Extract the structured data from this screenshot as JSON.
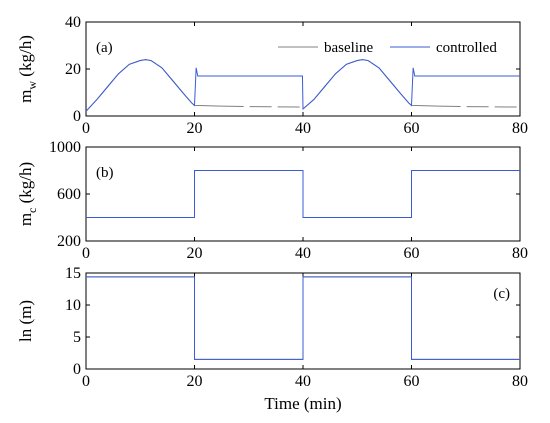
{
  "chart_data": [
    {
      "type": "line",
      "panel_label": "(a)",
      "ylabel": {
        "main": "m",
        "sub": "w",
        "unit": " (kg/h)"
      },
      "xlim": [
        0,
        80
      ],
      "ylim": [
        0,
        40
      ],
      "xticks": [
        "0",
        "20",
        "40",
        "60",
        "80"
      ],
      "yticks": [
        "0",
        "20",
        "40"
      ],
      "xtick_values": [
        0,
        20,
        40,
        60,
        80
      ],
      "ytick_values": [
        0,
        20,
        40
      ],
      "legend": {
        "position": "top-right",
        "entries": [
          "baseline",
          "controlled"
        ]
      },
      "series": [
        {
          "name": "baseline",
          "color": "#808080",
          "dashed_after_min": 25,
          "x": [
            0,
            2,
            4,
            6,
            8,
            10,
            11,
            12,
            14,
            16,
            18,
            19.5,
            20,
            25,
            30,
            35,
            39.9,
            40,
            42,
            44,
            46,
            48,
            50,
            51,
            52,
            54,
            56,
            58,
            59.5,
            60,
            65,
            70,
            75,
            80
          ],
          "values": [
            2,
            7,
            12.5,
            18,
            22,
            23.6,
            24,
            23.6,
            20.5,
            15,
            9.5,
            5.5,
            4.5,
            4.2,
            4,
            3.9,
            3.8,
            3,
            7,
            12.5,
            18,
            22,
            23.6,
            24,
            23.6,
            20.5,
            15,
            9.5,
            5.5,
            4.5,
            4.2,
            4,
            3.9,
            3.8
          ]
        },
        {
          "name": "controlled",
          "color": "#3a5cd6",
          "x": [
            0,
            2,
            4,
            6,
            8,
            10,
            11,
            12,
            14,
            16,
            18,
            19.5,
            20,
            20.3,
            20.6,
            25,
            30,
            35,
            39.9,
            40,
            42,
            44,
            46,
            48,
            50,
            51,
            52,
            54,
            56,
            58,
            59.5,
            60,
            60.3,
            60.6,
            65,
            70,
            75,
            80
          ],
          "values": [
            2,
            7,
            12.5,
            18,
            22,
            23.6,
            24,
            23.6,
            20.5,
            15,
            9.5,
            5.5,
            4.5,
            20.5,
            17,
            17,
            17,
            17,
            17,
            3,
            7,
            12.5,
            18,
            22,
            23.6,
            24,
            23.6,
            20.5,
            15,
            9.5,
            5.5,
            4.5,
            20.5,
            17,
            17,
            17,
            17,
            17
          ]
        }
      ]
    },
    {
      "type": "line",
      "panel_label": "(b)",
      "ylabel": {
        "main": "m",
        "sub": "c",
        "unit": " (kg/h)"
      },
      "xlim": [
        0,
        80
      ],
      "ylim": [
        200,
        1000
      ],
      "xticks": [
        "0",
        "20",
        "40",
        "60",
        "80"
      ],
      "yticks": [
        "200",
        "600",
        "1000"
      ],
      "xtick_values": [
        0,
        20,
        40,
        60,
        80
      ],
      "ytick_values": [
        200,
        600,
        1000
      ],
      "series": [
        {
          "name": "baseline",
          "color": "#808080",
          "x": [
            0,
            20,
            20,
            40,
            40,
            60,
            60,
            80
          ],
          "values": [
            400,
            400,
            800,
            800,
            400,
            400,
            800,
            800
          ]
        },
        {
          "name": "controlled",
          "color": "#3a5cd6",
          "x": [
            0,
            20,
            20,
            40,
            40,
            60,
            60,
            80
          ],
          "values": [
            400,
            400,
            800,
            800,
            400,
            400,
            800,
            800
          ]
        }
      ]
    },
    {
      "type": "line",
      "panel_label": "(c)",
      "ylabel": {
        "main": "ln",
        "sub": "",
        "unit": " (m)"
      },
      "xlabel": "Time (min)",
      "xlim": [
        0,
        80
      ],
      "ylim": [
        0,
        15
      ],
      "xticks": [
        "0",
        "20",
        "40",
        "60",
        "80"
      ],
      "yticks": [
        "0",
        "5",
        "10",
        "15"
      ],
      "xtick_values": [
        0,
        20,
        40,
        60,
        80
      ],
      "ytick_values": [
        0,
        5,
        10,
        15
      ],
      "series": [
        {
          "name": "baseline",
          "color": "#808080",
          "x": [
            0,
            20,
            20,
            40,
            40,
            60,
            60,
            80
          ],
          "values": [
            14.4,
            14.4,
            1.5,
            1.5,
            14.4,
            14.4,
            1.5,
            1.5
          ]
        },
        {
          "name": "controlled",
          "color": "#3a5cd6",
          "x": [
            0,
            20,
            20,
            40,
            40,
            60,
            60,
            80
          ],
          "values": [
            14.4,
            14.4,
            1.5,
            1.5,
            14.4,
            14.4,
            1.5,
            1.5
          ]
        }
      ]
    }
  ]
}
